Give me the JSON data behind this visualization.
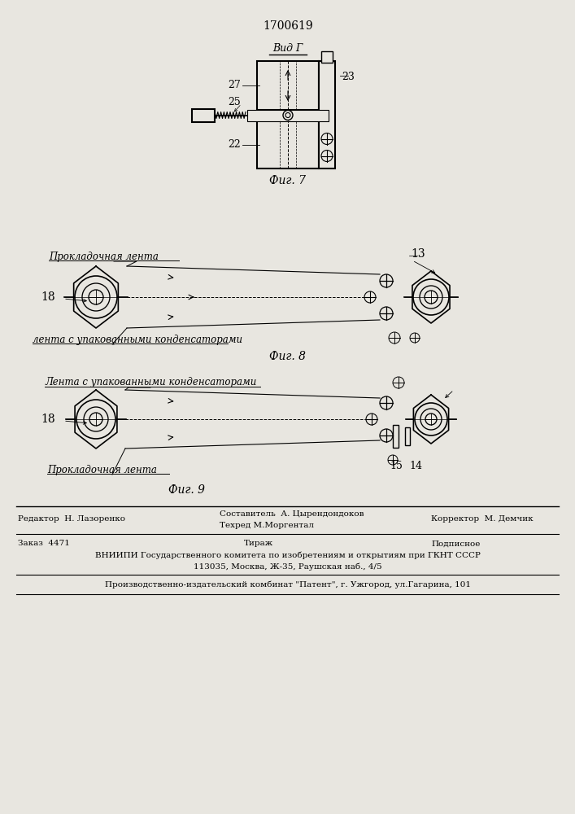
{
  "bg_color": "#e8e6e0",
  "patent_number": "1700619",
  "fig7_label": "Фиг. 7",
  "fig8_label": "Фиг. 8",
  "fig9_label": "Фиг. 9",
  "vid_g": "Вид Г",
  "label_27": "27",
  "label_25": "25",
  "label_22": "22",
  "label_23": "23",
  "label_13": "13",
  "label_18_fig8": "18",
  "label_18_fig9": "18",
  "label_15": "15",
  "label_14": "14",
  "text_prokladochnaya_fig8": "Прокладочная лента",
  "text_lenta_upak_fig8": "лента с упакованными конденсаторами",
  "text_lenta_upak_fig9": "Лента с упакованными конденсаторами",
  "text_prokladochnaya_fig9": "Прокладочная лента"
}
